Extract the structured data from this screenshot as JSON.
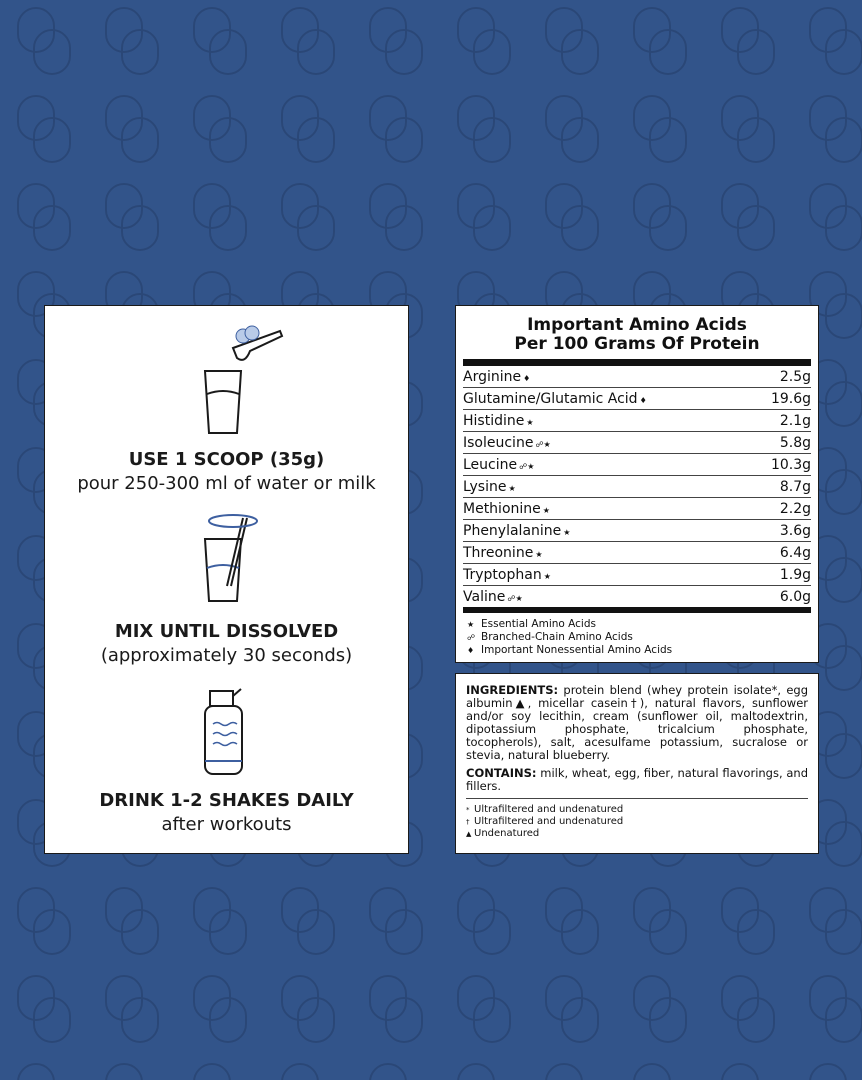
{
  "steps": [
    {
      "title": "USE 1 SCOOP (35g)",
      "subtitle": "pour 250-300 ml of water or milk"
    },
    {
      "title": "MIX UNTIL DISSOLVED",
      "subtitle": "(approximately 30 seconds)"
    },
    {
      "title": "DRINK 1-2 SHAKES DAILY",
      "subtitle": "after workouts"
    }
  ],
  "amino": {
    "title": [
      "Important Amino Acids",
      "Per 100 Grams Of Protein"
    ],
    "rows": [
      {
        "name": "Arginine",
        "marks": "♦",
        "value": "2.5g"
      },
      {
        "name": "Glutamine/Glutamic Acid",
        "marks": "♦",
        "value": "19.6g"
      },
      {
        "name": "Histidine",
        "marks": "★",
        "value": "2.1g"
      },
      {
        "name": "Isoleucine",
        "marks": "☍★",
        "value": "5.8g"
      },
      {
        "name": "Leucine",
        "marks": "☍★",
        "value": "10.3g"
      },
      {
        "name": "Lysine",
        "marks": "★",
        "value": "8.7g"
      },
      {
        "name": "Methionine",
        "marks": "★",
        "value": "2.2g"
      },
      {
        "name": "Phenylalanine",
        "marks": "★",
        "value": "3.6g"
      },
      {
        "name": "Threonine",
        "marks": "★",
        "value": "6.4g"
      },
      {
        "name": "Tryptophan",
        "marks": "★",
        "value": "1.9g"
      },
      {
        "name": "Valine",
        "marks": "☍★",
        "value": "6.0g"
      }
    ],
    "legend": [
      {
        "symbol": "★",
        "text": "Essential Amino Acids"
      },
      {
        "symbol": "☍",
        "text": "Branched-Chain Amino Acids"
      },
      {
        "symbol": "♦",
        "text": "Important Nonessential Amino Acids"
      }
    ]
  },
  "ingredients": {
    "label": "INGREDIENTS:",
    "text": "protein blend (whey protein isolate*, egg albumin▲, micellar casein†), natural flavors, sunflower and/or soy lecithin, cream (sunflower oil, maltodextrin, dipotassium phosphate, tricalcium phosphate, tocopherols), salt, acesulfame potassium, sucralose or stevia, natural blueberry.",
    "contains_label": "CONTAINS:",
    "contains": "milk, wheat, egg, fiber, natural flavorings, and fillers.",
    "notes": [
      {
        "symbol": "*",
        "text": "Ultrafiltered and undenatured"
      },
      {
        "symbol": "†",
        "text": "Ultrafiltered and undenatured"
      },
      {
        "symbol": "▲",
        "text": "Undenatured"
      }
    ]
  }
}
